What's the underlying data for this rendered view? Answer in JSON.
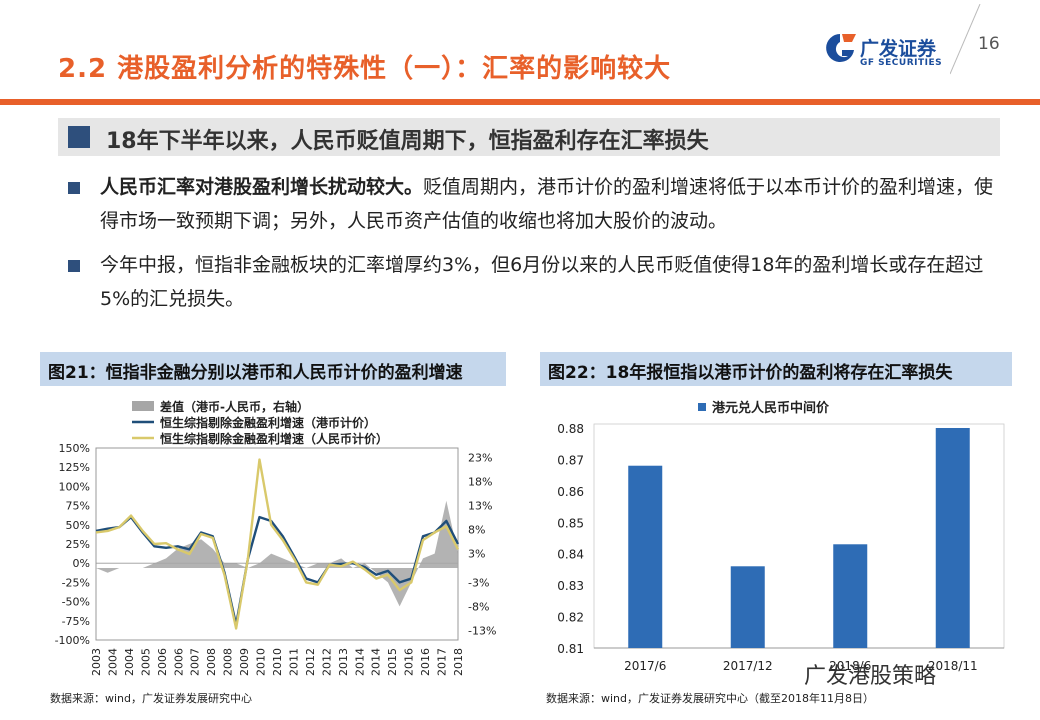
{
  "header": {
    "title": "2.2 港股盈利分析的特殊性（一）：汇率的影响较大",
    "logo_name": "广发证券",
    "logo_sub": "GF SECURITIES",
    "page_number": "16"
  },
  "banner": {
    "text": "18年下半年以来，人民币贬值周期下，恒指盈利存在汇率损失"
  },
  "bullets": [
    {
      "bold": "人民币汇率对港股盈利增长扰动较大。",
      "text": "贬值周期内，港币计价的盈利增速将低于以本币计价的盈利增速，使得市场一致预期下调；另外，人民币资产估值的收缩也将加大股价的波动。"
    },
    {
      "bold": "",
      "text": "今年中报，恒指非金融板块的汇率增厚约3%，但6月份以来的人民币贬值使得18年的盈利增长或存在超过5%的汇兑损失。"
    }
  ],
  "chart_data": [
    {
      "type": "line",
      "title": "图21：恒指非金融分别以港币和人民币计价的盈利增速",
      "source": "数据来源：wind，广发证券发展研究中心",
      "x": [
        "2003",
        "2003.5",
        "2004",
        "2004.5",
        "2005",
        "2005.5",
        "2006",
        "2006.5",
        "2007",
        "2007.5",
        "2008",
        "2008.5",
        "2009",
        "2009.5",
        "2010",
        "2010.5",
        "2011",
        "2011.5",
        "2012",
        "2012.5",
        "2013",
        "2013.5",
        "2014",
        "2014.5",
        "2015",
        "2015.5",
        "2016",
        "2016.5",
        "2017",
        "2017.5",
        "2018",
        "2018.5"
      ],
      "x_tick_labels": [
        "2003",
        "2004",
        "2004",
        "2005",
        "2006",
        "2006",
        "2007",
        "2008",
        "2008",
        "2009",
        "2010",
        "2010",
        "2011",
        "2012",
        "2012",
        "2013",
        "2014",
        "2014",
        "2015",
        "2016",
        "2016",
        "2017",
        "2018"
      ],
      "legend": [
        "差值（港币-人民币，右轴）",
        "恒生综指剔除金融盈利增速（港币计价）",
        "恒生综指剔除金融盈利增速（人民币计价）"
      ],
      "y_left_ticks": [
        "150%",
        "125%",
        "100%",
        "75%",
        "50%",
        "25%",
        "0%",
        "-25%",
        "-50%",
        "-75%",
        "-100%"
      ],
      "y_right_ticks": [
        "23%",
        "18%",
        "13%",
        "8%",
        "3%",
        "-3%",
        "-8%",
        "-13%"
      ],
      "ylim_left": [
        -100,
        150
      ],
      "ylim_right": [
        -15,
        25
      ],
      "series": [
        {
          "name": "恒生综指剔除金融盈利增速（港币计价）",
          "axis": "left",
          "color": "#1f4e79",
          "values": [
            42,
            45,
            47,
            60,
            40,
            22,
            20,
            22,
            18,
            40,
            35,
            -12,
            -80,
            5,
            60,
            55,
            35,
            8,
            -20,
            -25,
            -2,
            -1,
            0,
            -5,
            -15,
            -10,
            -25,
            -20,
            35,
            40,
            55,
            25
          ]
        },
        {
          "name": "恒生综指剔除金融盈利增速（人民币计价）",
          "axis": "left",
          "color": "#d9c96b",
          "values": [
            40,
            42,
            47,
            62,
            42,
            25,
            26,
            18,
            12,
            38,
            33,
            -15,
            -85,
            5,
            135,
            50,
            30,
            5,
            -25,
            -28,
            -2,
            -4,
            2,
            -8,
            -20,
            -15,
            -35,
            -25,
            30,
            40,
            48,
            18
          ]
        },
        {
          "name": "差值（港币-人民币，右轴）",
          "axis": "right",
          "color": "#a6a6a6",
          "values": [
            0,
            -1,
            0,
            0,
            0,
            1,
            2,
            4,
            5,
            6,
            4,
            1,
            1,
            0,
            1,
            3,
            2,
            1,
            0,
            1,
            1,
            2,
            0,
            1,
            -1,
            -3,
            -8,
            -3,
            2,
            3,
            14,
            3
          ]
        }
      ]
    },
    {
      "type": "bar",
      "title": "图22：18年报恒指以港币计价的盈利将存在汇率损失",
      "source": "数据来源：wind，广发证券发展研究中心（截至2018年11月8日）",
      "legend": [
        "港元兑人民币中间价"
      ],
      "categories": [
        "2017/6",
        "2017/12",
        "2018/6",
        "2018/11"
      ],
      "values": [
        0.868,
        0.836,
        0.843,
        0.88
      ],
      "ylim": [
        0.81,
        0.88
      ],
      "y_ticks": [
        "0.88",
        "0.87",
        "0.86",
        "0.85",
        "0.84",
        "0.83",
        "0.82",
        "0.81"
      ],
      "color": "#2e6cb5"
    }
  ],
  "watermark": "广发港股策略"
}
